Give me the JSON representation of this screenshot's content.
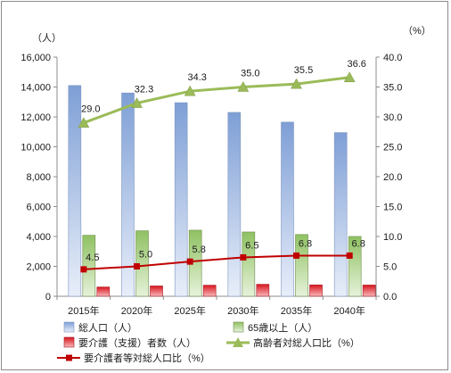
{
  "chart_data": {
    "type": "bar",
    "categories": [
      "2015年",
      "2020年",
      "2025年",
      "2030年",
      "2035年",
      "2040年"
    ],
    "left_axis": {
      "unit": "（人）",
      "ylim": [
        0,
        16000
      ],
      "ticks": [
        "0",
        "2,000",
        "4,000",
        "6,000",
        "8,000",
        "10,000",
        "12,000",
        "14,000",
        "16,000"
      ],
      "tick_values": [
        0,
        2000,
        4000,
        6000,
        8000,
        10000,
        12000,
        14000,
        16000
      ]
    },
    "right_axis": {
      "unit": "（%）",
      "ylim": [
        0,
        40
      ],
      "ticks": [
        "0.0",
        "5.0",
        "10.0",
        "15.0",
        "20.0",
        "25.0",
        "30.0",
        "35.0",
        "40.0"
      ],
      "tick_values": [
        0,
        5,
        10,
        15,
        20,
        25,
        30,
        35,
        40
      ]
    },
    "series": [
      {
        "name": "総人口(人)",
        "kind": "bar",
        "axis": "left",
        "color": "#8eaadb",
        "values": [
          14100,
          13600,
          12950,
          12300,
          11650,
          10950
        ]
      },
      {
        "name": "65歳以上(人)",
        "kind": "bar",
        "axis": "left",
        "color": "#8fc162",
        "values": [
          4080,
          4380,
          4420,
          4300,
          4130,
          4000
        ]
      },
      {
        "name": "要介護(支援)者数(人)",
        "kind": "bar",
        "axis": "left",
        "color": "#e3242b",
        "values": [
          620,
          690,
          740,
          800,
          760,
          750
        ]
      },
      {
        "name": "高齢者対総人口比(%)",
        "kind": "line",
        "axis": "right",
        "color": "#9bbb59",
        "marker": "triangle",
        "values": [
          29.0,
          32.3,
          34.3,
          35.0,
          35.5,
          36.6
        ],
        "labels": [
          "29.0",
          "32.3",
          "34.3",
          "35.0",
          "35.5",
          "36.6"
        ]
      },
      {
        "name": "要介護者等対総人口比(%)",
        "kind": "line",
        "axis": "right",
        "color": "#c00000",
        "marker": "square",
        "values": [
          4.5,
          5.0,
          5.8,
          6.5,
          6.8,
          6.8
        ],
        "labels": [
          "4.5",
          "5.0",
          "5.8",
          "6.5",
          "6.8",
          "6.8"
        ]
      }
    ],
    "legend": {
      "placement": "bottom",
      "rows": [
        [
          "総人口（人）",
          "65歳以上（人）"
        ],
        [
          "要介護（支援）者数（人）",
          "高齢者対総人口比（%）"
        ],
        [
          "要介護者等対総人口比（%）"
        ]
      ]
    },
    "grid": false
  }
}
